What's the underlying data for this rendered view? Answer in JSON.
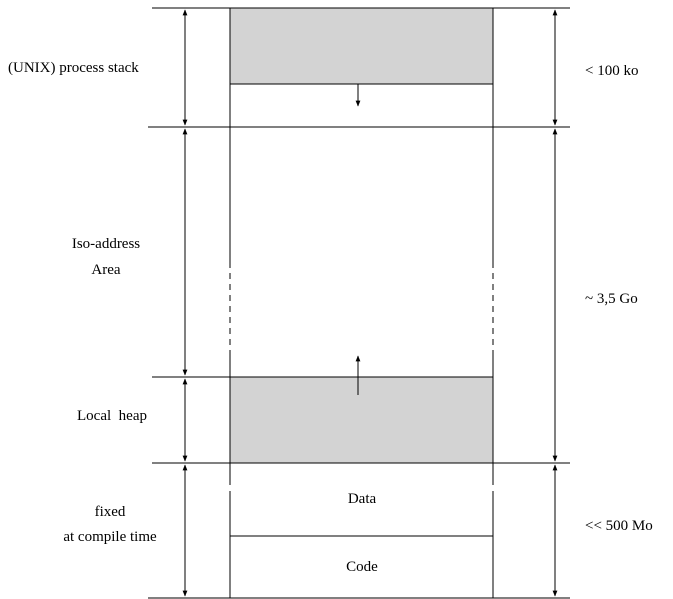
{
  "left_labels": {
    "stack": "(UNIX) process stack",
    "iso_line1": "Iso-address",
    "iso_line2": "Area",
    "heap": "Local  heap",
    "fixed_line1": "fixed",
    "fixed_line2": "at compile time"
  },
  "right_labels": {
    "stack_size": "< 100 ko",
    "iso_size": "~ 3,5 Go",
    "fixed_size": "<< 500 Mo"
  },
  "segments": {
    "data": "Data",
    "code": "Code"
  },
  "colors": {
    "shaded_region": "#d3d3d3",
    "line": "#000000"
  }
}
